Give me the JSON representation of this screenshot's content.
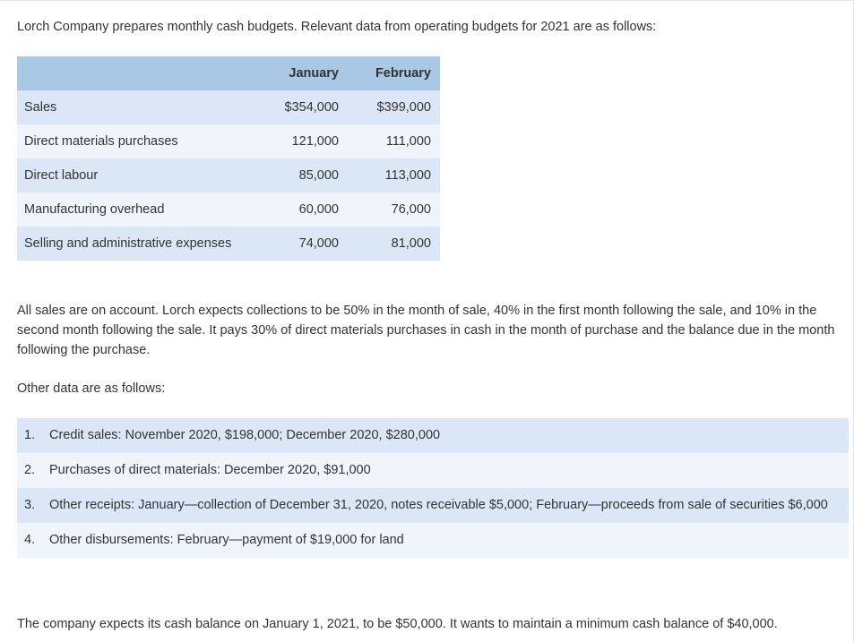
{
  "intro": "Lorch Company prepares monthly cash budgets. Relevant data from operating budgets for 2021 are as follows:",
  "table": {
    "headers": [
      "",
      "January",
      "February"
    ],
    "rows": [
      {
        "label": "Sales",
        "january": "$354,000",
        "february": "$399,000"
      },
      {
        "label": "Direct materials purchases",
        "january": "121,000",
        "february": "111,000"
      },
      {
        "label": "Direct labour",
        "january": "85,000",
        "february": "113,000"
      },
      {
        "label": "Manufacturing overhead",
        "january": "60,000",
        "february": "76,000"
      },
      {
        "label": "Selling and administrative expenses",
        "january": "74,000",
        "february": "81,000"
      }
    ]
  },
  "collections_paragraph": "All sales are on account. Lorch expects collections to be 50% in the month of sale, 40% in the first month following the sale, and 10% in the second month following the sale. It pays 30% of direct materials purchases in cash in the month of purchase and the balance due in the month following the purchase.",
  "other_data_heading": "Other data are as follows:",
  "items": [
    {
      "number": "1.",
      "text": "Credit sales: November 2020, $198,000; December 2020, $280,000"
    },
    {
      "number": "2.",
      "text": "Purchases of direct materials: December 2020, $91,000"
    },
    {
      "number": "3.",
      "text": "Other receipts: January—collection of December 31, 2020, notes receivable $5,000; February—proceeds from sale of securities $6,000"
    },
    {
      "number": "4.",
      "text": "Other disbursements: February—payment of $19,000 for land"
    }
  ],
  "closing": "The company expects its cash balance on January 1, 2021, to be $50,000. It wants to maintain a minimum cash balance of $40,000."
}
